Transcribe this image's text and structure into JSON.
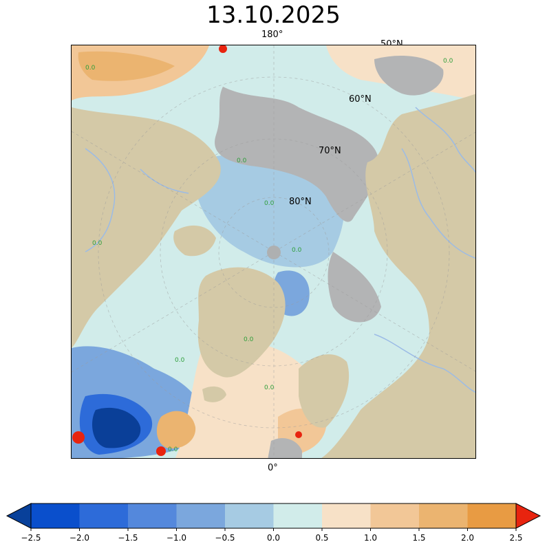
{
  "title": "13.10.2025",
  "graticule_labels": {
    "lon_top": "180°",
    "lon_bottom": "0°",
    "lat_50": "50°N",
    "lat_60": "60°N",
    "lat_70": "70°N",
    "lat_80": "80°N"
  },
  "colors": {
    "land": "#d4c9a7",
    "masked_ocean": "#b3b4b5",
    "rivers": "#9bbbe6",
    "contour_label": "#2e9e3a",
    "pole": "#aeb0b1"
  },
  "colorbar": {
    "bounds": [
      -2.5,
      -2.0,
      -1.5,
      -1.0,
      -0.5,
      0.0,
      0.5,
      1.0,
      1.5,
      2.0,
      2.5
    ],
    "tick_labels": [
      "−2.5",
      "−2.0",
      "−1.5",
      "−1.0",
      "−0.5",
      "0.0",
      "0.5",
      "1.0",
      "1.5",
      "2.0",
      "2.5"
    ],
    "under_color": "#08409a",
    "over_color": "#e8240f",
    "bin_colors": [
      "#0a4fcc",
      "#2d6bd9",
      "#5488dc",
      "#7ba7dd",
      "#a6cbe3",
      "#d1ecea",
      "#f7e1c7",
      "#f2c797",
      "#ebb470",
      "#e89b43"
    ],
    "extend": "both",
    "orientation": "horizontal"
  }
}
